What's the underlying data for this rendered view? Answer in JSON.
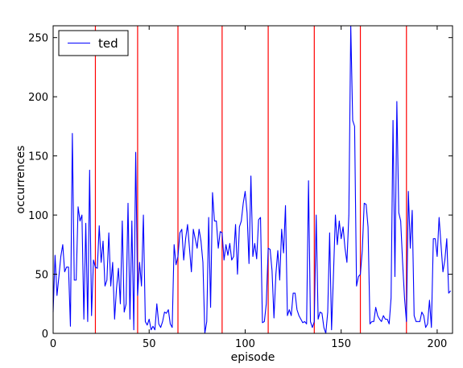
{
  "chart_data": {
    "type": "line",
    "title": "",
    "xlabel": "episode",
    "ylabel": "occurrences",
    "xlim": [
      0,
      208
    ],
    "ylim": [
      0,
      260
    ],
    "xticks": [
      0,
      50,
      100,
      150,
      200
    ],
    "yticks": [
      0,
      50,
      100,
      150,
      200,
      250
    ],
    "grid": false,
    "legend": {
      "placement": "top-left",
      "entries": [
        "ted"
      ]
    },
    "colors": {
      "series": "#0000ff",
      "vlines": "#ff0000"
    },
    "vlines": [
      22,
      44,
      65,
      88,
      112,
      136,
      160,
      184
    ],
    "series": [
      {
        "name": "ted",
        "values": [
          18,
          66,
          32,
          48,
          65,
          75,
          52,
          56,
          56,
          6,
          169,
          45,
          45,
          107,
          95,
          100,
          12,
          93,
          10,
          138,
          15,
          62,
          56,
          55,
          91,
          60,
          78,
          40,
          45,
          85,
          40,
          60,
          12,
          38,
          55,
          25,
          95,
          18,
          25,
          110,
          12,
          95,
          3,
          153,
          32,
          60,
          40,
          100,
          10,
          7,
          12,
          3,
          6,
          3,
          25,
          8,
          5,
          10,
          18,
          17,
          20,
          8,
          5,
          75,
          58,
          65,
          85,
          88,
          62,
          80,
          92,
          72,
          52,
          88,
          80,
          72,
          88,
          78,
          60,
          0,
          10,
          98,
          22,
          119,
          95,
          95,
          72,
          86,
          85,
          62,
          75,
          66,
          76,
          62,
          65,
          92,
          50,
          90,
          95,
          110,
          120,
          102,
          59,
          133,
          65,
          76,
          63,
          96,
          98,
          9,
          10,
          25,
          72,
          71,
          53,
          13,
          50,
          70,
          45,
          88,
          68,
          108,
          15,
          20,
          15,
          34,
          34,
          20,
          15,
          12,
          9,
          10,
          8,
          129,
          10,
          5,
          10,
          100,
          12,
          18,
          17,
          5,
          0,
          18,
          85,
          3,
          50,
          100,
          75,
          95,
          80,
          90,
          72,
          60,
          100,
          260,
          180,
          175,
          40,
          48,
          50,
          70,
          110,
          109,
          90,
          8,
          10,
          10,
          22,
          15,
          12,
          10,
          15,
          12,
          12,
          8,
          30,
          180,
          48,
          196,
          102,
          95,
          60,
          30,
          10,
          120,
          72,
          104,
          15,
          10,
          10,
          10,
          18,
          15,
          5,
          8,
          28,
          5,
          80,
          80,
          65,
          98,
          75,
          52,
          62,
          80,
          34,
          36
        ]
      }
    ]
  }
}
